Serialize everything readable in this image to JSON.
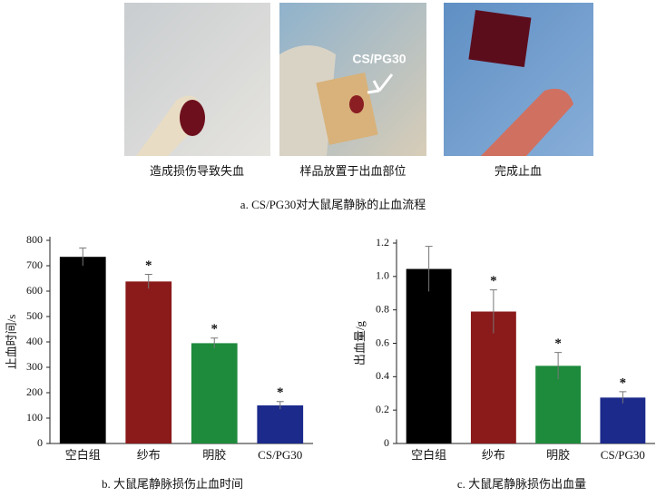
{
  "panel_a": {
    "panels": [
      {
        "caption": "造成损伤导致失血"
      },
      {
        "caption": "样品放置于出血部位"
      },
      {
        "caption": "完成止血"
      }
    ],
    "arrow_label": "CS/PG30",
    "caption": "a. CS/PG30对大鼠尾静脉的止血流程"
  },
  "chart_data": [
    {
      "type": "bar",
      "caption": "b. 大鼠尾静脉损伤止血时间",
      "y_label": "止血时间/s",
      "categories": [
        "空白组",
        "纱布",
        "明胶",
        "CS/PG30"
      ],
      "values": [
        735,
        638,
        395,
        150
      ],
      "errors": [
        35,
        28,
        20,
        15
      ],
      "significance": [
        null,
        "*",
        "*",
        "*"
      ],
      "colors": [
        "#000000",
        "#8b1a1a",
        "#1e8a3c",
        "#1c2a8c"
      ],
      "ylim": [
        0,
        800
      ],
      "yticks": [
        0,
        100,
        200,
        300,
        400,
        500,
        600,
        700,
        800
      ]
    },
    {
      "type": "bar",
      "caption": "c. 大鼠尾静脉损伤出血量",
      "y_label": "出血量/g",
      "categories": [
        "空白组",
        "纱布",
        "明胶",
        "CS/PG30"
      ],
      "values": [
        1.045,
        0.79,
        0.465,
        0.275
      ],
      "errors": [
        0.135,
        0.13,
        0.08,
        0.035
      ],
      "significance": [
        null,
        "*",
        "*",
        "*"
      ],
      "colors": [
        "#000000",
        "#8b1a1a",
        "#1e8a3c",
        "#1c2a8c"
      ],
      "ylim": [
        0,
        1.2
      ],
      "yticks": [
        0,
        0.2,
        0.4,
        0.6,
        {
          "value": 0.8,
          "label": "0.8"
        },
        {
          "value": 1,
          "label": "1.0"
        },
        1.2
      ]
    }
  ]
}
